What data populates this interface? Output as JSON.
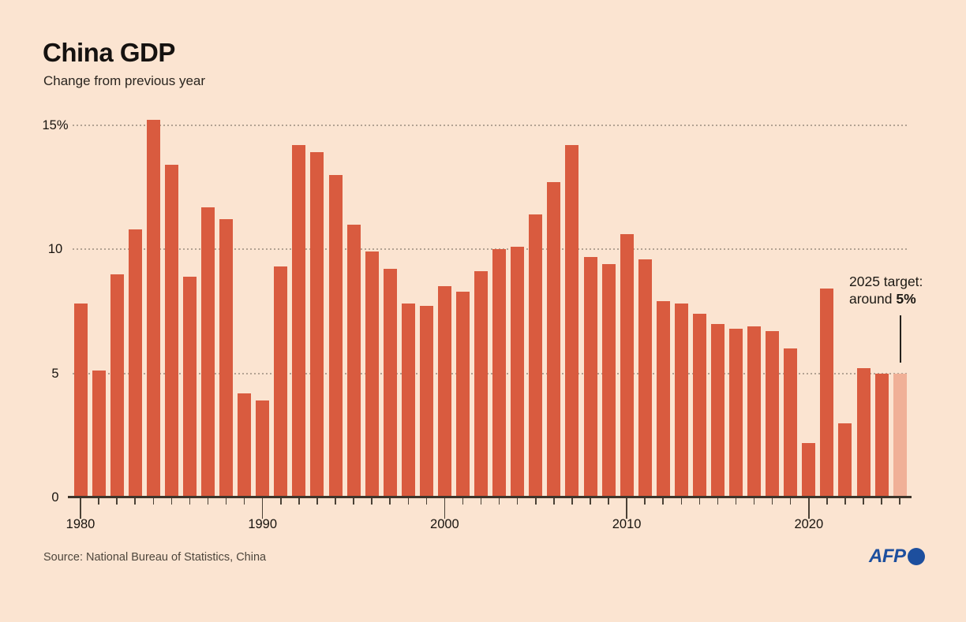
{
  "header": {
    "title": "China GDP",
    "subtitle": "Change from previous year"
  },
  "chart_data": {
    "type": "bar",
    "title": "China GDP",
    "subtitle": "Change from previous year",
    "unit": "%",
    "ylim": [
      0,
      15.5
    ],
    "grid": "horizontal dotted",
    "legend": "none",
    "gridline_values": [
      5,
      10,
      15
    ],
    "y_tick_labels": [
      {
        "value": 15,
        "label": "15%"
      },
      {
        "value": 10,
        "label": "10"
      },
      {
        "value": 5,
        "label": "5"
      },
      {
        "value": 0,
        "label": "0"
      }
    ],
    "x_tick_labels": [
      "1980",
      "1990",
      "2000",
      "2010",
      "2020"
    ],
    "categories": [
      1980,
      1981,
      1982,
      1983,
      1984,
      1985,
      1986,
      1987,
      1988,
      1989,
      1990,
      1991,
      1992,
      1993,
      1994,
      1995,
      1996,
      1997,
      1998,
      1999,
      2000,
      2001,
      2002,
      2003,
      2004,
      2005,
      2006,
      2007,
      2008,
      2009,
      2010,
      2011,
      2012,
      2013,
      2014,
      2015,
      2016,
      2017,
      2018,
      2019,
      2020,
      2021,
      2022,
      2023,
      2024,
      2025
    ],
    "values": [
      7.8,
      5.1,
      9.0,
      10.8,
      15.2,
      13.4,
      8.9,
      11.7,
      11.2,
      4.2,
      3.9,
      9.3,
      14.2,
      13.9,
      13.0,
      11.0,
      9.9,
      9.2,
      7.8,
      7.7,
      8.5,
      8.3,
      9.1,
      10.0,
      10.1,
      11.4,
      12.7,
      14.2,
      9.7,
      9.4,
      10.6,
      9.6,
      7.9,
      7.8,
      7.4,
      7.0,
      6.8,
      6.9,
      6.7,
      6.0,
      2.2,
      8.4,
      3.0,
      5.2,
      5.0,
      5.0
    ],
    "highlight": {
      "year": 2025,
      "style": "lighter",
      "meaning": "government target"
    }
  },
  "annotation": {
    "line1": "2025 target:",
    "line2_prefix": "around ",
    "line2_bold": "5%"
  },
  "footer": {
    "source": "Source: National Bureau of Statistics, China",
    "logo_text": "AFP"
  },
  "colors": {
    "background": "#fbe4d1",
    "bar": "#d95b3f",
    "bar_target": "#f0b097",
    "gridline": "#b2a293",
    "axis": "#3e352b",
    "text": "#151210",
    "source_text": "#4e463c",
    "afp_blue": "#1d4f9e"
  }
}
